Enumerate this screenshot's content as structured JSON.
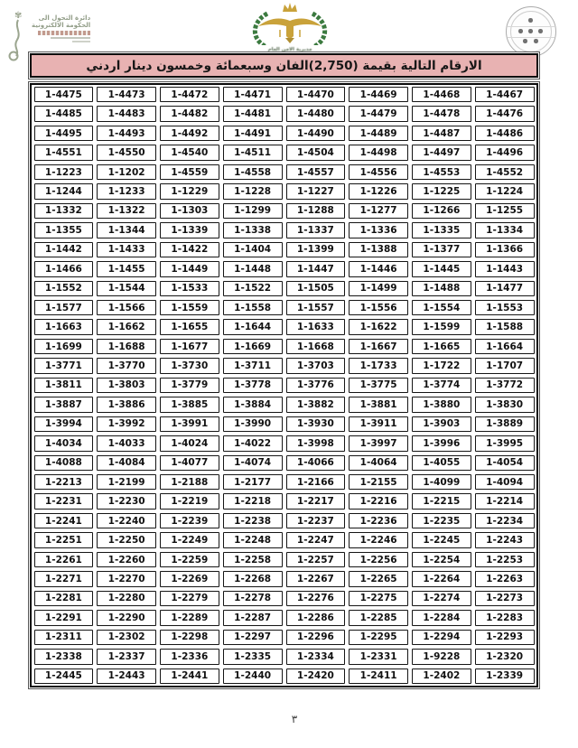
{
  "header": {
    "title": "الارقام التالية بقيمة  (2,750)الفان وسبعمائة وخمسون دينار اردني"
  },
  "logos": {
    "left": {
      "lines": [
        "دائرة التحول الى",
        "الحكومة الالكترونية"
      ]
    },
    "center": {
      "caption": "مديرية الامن العام"
    },
    "right": {
      "description": "round-seal"
    }
  },
  "colors": {
    "header_bg": "#e8b2b2",
    "table_border": "#0a0a0a",
    "wreath_green": "#3b7a3f",
    "eagle_gold": "#c9a23a",
    "seal_gray": "#979797"
  },
  "table": {
    "columns": 8,
    "rows": [
      [
        "1-4475",
        "1-4473",
        "1-4472",
        "1-4471",
        "1-4470",
        "1-4469",
        "1-4468",
        "1-4467"
      ],
      [
        "1-4485",
        "1-4483",
        "1-4482",
        "1-4481",
        "1-4480",
        "1-4479",
        "1-4478",
        "1-4476"
      ],
      [
        "1-4495",
        "1-4493",
        "1-4492",
        "1-4491",
        "1-4490",
        "1-4489",
        "1-4487",
        "1-4486"
      ],
      [
        "1-4551",
        "1-4550",
        "1-4540",
        "1-4511",
        "1-4504",
        "1-4498",
        "1-4497",
        "1-4496"
      ],
      [
        "1-1223",
        "1-1202",
        "1-4559",
        "1-4558",
        "1-4557",
        "1-4556",
        "1-4553",
        "1-4552"
      ],
      [
        "1-1244",
        "1-1233",
        "1-1229",
        "1-1228",
        "1-1227",
        "1-1226",
        "1-1225",
        "1-1224"
      ],
      [
        "1-1332",
        "1-1322",
        "1-1303",
        "1-1299",
        "1-1288",
        "1-1277",
        "1-1266",
        "1-1255"
      ],
      [
        "1-1355",
        "1-1344",
        "1-1339",
        "1-1338",
        "1-1337",
        "1-1336",
        "1-1335",
        "1-1334"
      ],
      [
        "1-1442",
        "1-1433",
        "1-1422",
        "1-1404",
        "1-1399",
        "1-1388",
        "1-1377",
        "1-1366"
      ],
      [
        "1-1466",
        "1-1455",
        "1-1449",
        "1-1448",
        "1-1447",
        "1-1446",
        "1-1445",
        "1-1443"
      ],
      [
        "1-1552",
        "1-1544",
        "1-1533",
        "1-1522",
        "1-1505",
        "1-1499",
        "1-1488",
        "1-1477"
      ],
      [
        "1-1577",
        "1-1566",
        "1-1559",
        "1-1558",
        "1-1557",
        "1-1556",
        "1-1554",
        "1-1553"
      ],
      [
        "1-1663",
        "1-1662",
        "1-1655",
        "1-1644",
        "1-1633",
        "1-1622",
        "1-1599",
        "1-1588"
      ],
      [
        "1-1699",
        "1-1688",
        "1-1677",
        "1-1669",
        "1-1668",
        "1-1667",
        "1-1665",
        "1-1664"
      ],
      [
        "1-3771",
        "1-3770",
        "1-3730",
        "1-3711",
        "1-3703",
        "1-1733",
        "1-1722",
        "1-1707"
      ],
      [
        "1-3811",
        "1-3803",
        "1-3779",
        "1-3778",
        "1-3776",
        "1-3775",
        "1-3774",
        "1-3772"
      ],
      [
        "1-3887",
        "1-3886",
        "1-3885",
        "1-3884",
        "1-3882",
        "1-3881",
        "1-3880",
        "1-3830"
      ],
      [
        "1-3994",
        "1-3992",
        "1-3991",
        "1-3990",
        "1-3930",
        "1-3911",
        "1-3903",
        "1-3889"
      ],
      [
        "1-4034",
        "1-4033",
        "1-4024",
        "1-4022",
        "1-3998",
        "1-3997",
        "1-3996",
        "1-3995"
      ],
      [
        "1-4088",
        "1-4084",
        "1-4077",
        "1-4074",
        "1-4066",
        "1-4064",
        "1-4055",
        "1-4054"
      ],
      [
        "1-2213",
        "1-2199",
        "1-2188",
        "1-2177",
        "1-2166",
        "1-2155",
        "1-4099",
        "1-4094"
      ],
      [
        "1-2231",
        "1-2230",
        "1-2219",
        "1-2218",
        "1-2217",
        "1-2216",
        "1-2215",
        "1-2214"
      ],
      [
        "1-2241",
        "1-2240",
        "1-2239",
        "1-2238",
        "1-2237",
        "1-2236",
        "1-2235",
        "1-2234"
      ],
      [
        "1-2251",
        "1-2250",
        "1-2249",
        "1-2248",
        "1-2247",
        "1-2246",
        "1-2245",
        "1-2243"
      ],
      [
        "1-2261",
        "1-2260",
        "1-2259",
        "1-2258",
        "1-2257",
        "1-2256",
        "1-2254",
        "1-2253"
      ],
      [
        "1-2271",
        "1-2270",
        "1-2269",
        "1-2268",
        "1-2267",
        "1-2265",
        "1-2264",
        "1-2263"
      ],
      [
        "1-2281",
        "1-2280",
        "1-2279",
        "1-2278",
        "1-2276",
        "1-2275",
        "1-2274",
        "1-2273"
      ],
      [
        "1-2291",
        "1-2290",
        "1-2289",
        "1-2287",
        "1-2286",
        "1-2285",
        "1-2284",
        "1-2283"
      ],
      [
        "1-2311",
        "1-2302",
        "1-2298",
        "1-2297",
        "1-2296",
        "1-2295",
        "1-2294",
        "1-2293"
      ],
      [
        "1-2338",
        "1-2337",
        "1-2336",
        "1-2335",
        "1-2334",
        "1-2331",
        "1-9228",
        "1-2320"
      ],
      [
        "1-2445",
        "1-2443",
        "1-2441",
        "1-2440",
        "1-2420",
        "1-2411",
        "1-2402",
        "1-2339"
      ]
    ]
  },
  "footer": {
    "page_number": "٣"
  }
}
